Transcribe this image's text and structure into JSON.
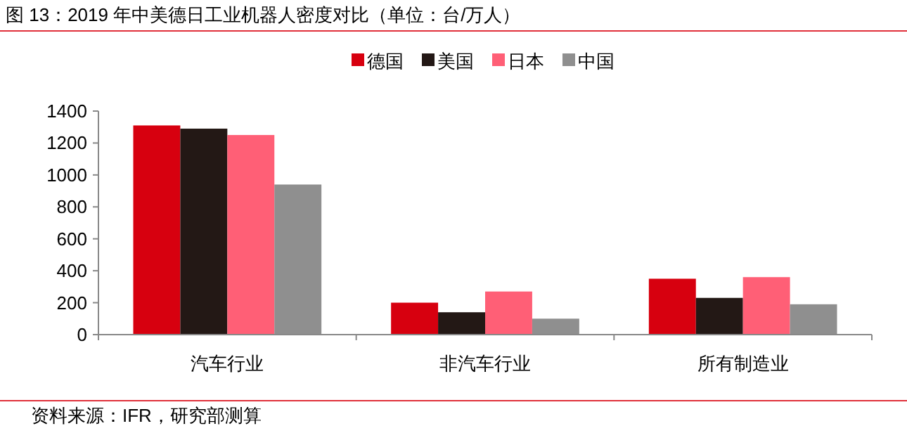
{
  "chart_data": {
    "type": "bar",
    "title": "图 13：2019 年中美德日工业机器人密度对比（单位：台/万人）",
    "categories": [
      "汽车行业",
      "非汽车行业",
      "所有制造业"
    ],
    "series": [
      {
        "name": "德国",
        "color": "#d7000f",
        "values": [
          1310,
          200,
          350
        ]
      },
      {
        "name": "美国",
        "color": "#231815",
        "values": [
          1290,
          140,
          230
        ]
      },
      {
        "name": "日本",
        "color": "#ff5f76",
        "values": [
          1250,
          270,
          360
        ]
      },
      {
        "name": "中国",
        "color": "#8f8f8f",
        "values": [
          940,
          100,
          190
        ]
      }
    ],
    "ylim": [
      0,
      1400
    ],
    "yticks": [
      0,
      200,
      400,
      600,
      800,
      1000,
      1200,
      1400
    ],
    "grid": false,
    "legend": "top",
    "annotations": [
      "资料来源：IFR，研究部测算"
    ]
  }
}
